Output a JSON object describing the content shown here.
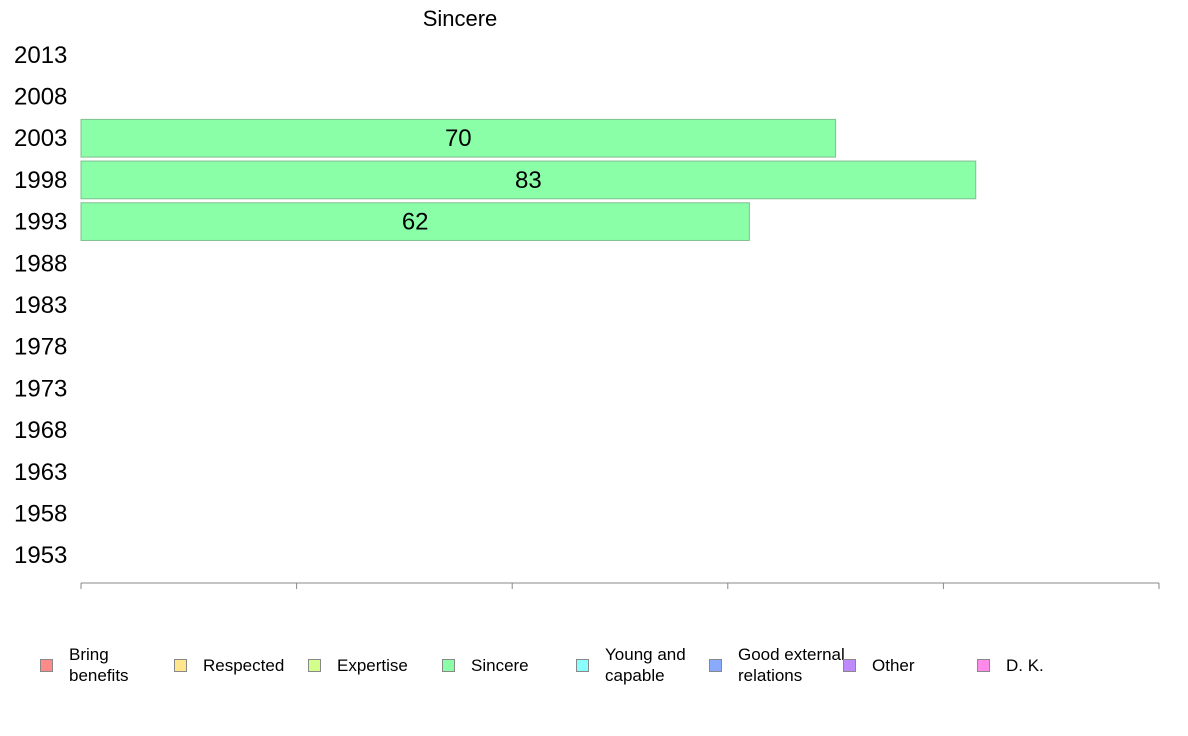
{
  "chart_data": {
    "type": "bar",
    "orientation": "horizontal",
    "title": "Sincere",
    "categories": [
      "2013",
      "2008",
      "2003",
      "1998",
      "1993",
      "1988",
      "1983",
      "1978",
      "1973",
      "1968",
      "1963",
      "1958",
      "1953"
    ],
    "series": [
      {
        "name": "Sincere",
        "values": [
          null,
          null,
          70,
          83,
          62,
          null,
          null,
          null,
          null,
          null,
          null,
          null,
          null
        ]
      }
    ],
    "data_labels": [
      "",
      "",
      "70",
      "83",
      "62",
      "",
      "",
      "",
      "",
      "",
      "",
      "",
      ""
    ],
    "xlim": [
      0,
      100
    ],
    "xticks": [
      "0",
      "20",
      "40",
      "60",
      "80",
      "100"
    ],
    "grid": false,
    "legend_position": "bottom",
    "bar_color": "#8affa8",
    "legend": [
      {
        "label": "Bring benefits",
        "color": "#ff8a8a"
      },
      {
        "label": "Respected",
        "color": "#ffe68a"
      },
      {
        "label": "Expertise",
        "color": "#d2ff8a"
      },
      {
        "label": "Sincere",
        "color": "#8affa8"
      },
      {
        "label": "Young and capable",
        "color": "#8affff"
      },
      {
        "label": "Good external relations",
        "color": "#8aaaff"
      },
      {
        "label": "Other",
        "color": "#c08aff"
      },
      {
        "label": "D. K.",
        "color": "#ff8aea"
      }
    ]
  }
}
